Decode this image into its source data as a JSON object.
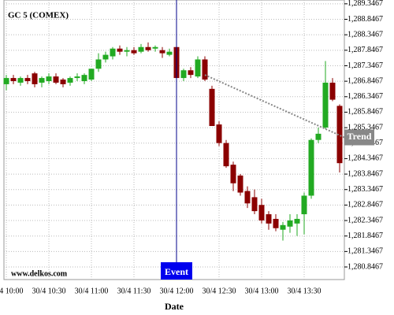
{
  "chart_data": {
    "type": "candlestick",
    "title": "GC 5 (COMEX)",
    "xlabel": "Date",
    "watermark": "www.delkos.com",
    "up_color": "#22aa22",
    "down_color": "#8b0000",
    "grid": true,
    "x": [
      "30/4 10:00",
      "30/4 10:05",
      "30/4 10:10",
      "30/4 10:15",
      "30/4 10:20",
      "30/4 10:25",
      "30/4 10:30",
      "30/4 10:35",
      "30/4 10:40",
      "30/4 10:45",
      "30/4 10:50",
      "30/4 10:55",
      "30/4 11:00",
      "30/4 11:05",
      "30/4 11:10",
      "30/4 11:15",
      "30/4 11:20",
      "30/4 11:25",
      "30/4 11:30",
      "30/4 11:35",
      "30/4 11:40",
      "30/4 11:45",
      "30/4 11:50",
      "30/4 11:55",
      "30/4 12:00",
      "30/4 12:05",
      "30/4 12:10",
      "30/4 12:15",
      "30/4 12:20",
      "30/4 12:25",
      "30/4 12:30",
      "30/4 12:35",
      "30/4 12:40",
      "30/4 12:45",
      "30/4 12:50",
      "30/4 12:55",
      "30/4 13:00",
      "30/4 13:05",
      "30/4 13:10",
      "30/4 13:15",
      "30/4 13:20",
      "30/4 13:25",
      "30/4 13:30",
      "30/4 13:35",
      "30/4 13:40",
      "30/4 13:45",
      "30/4 13:50",
      "30/4 13:55"
    ],
    "open": [
      1286.75,
      1286.95,
      1286.8,
      1286.95,
      1287.1,
      1286.8,
      1286.85,
      1287.0,
      1286.9,
      1286.8,
      1286.95,
      1286.85,
      1286.9,
      1287.25,
      1287.55,
      1287.65,
      1287.9,
      1287.8,
      1287.85,
      1287.8,
      1287.95,
      1287.9,
      1287.85,
      1287.7,
      1287.95,
      1286.95,
      1287.2,
      1287.0,
      1287.55,
      1286.6,
      1285.45,
      1284.85,
      1284.15,
      1283.8,
      1283.3,
      1283.1,
      1282.85,
      1282.55,
      1282.4,
      1282.05,
      1282.15,
      1282.25,
      1282.55,
      1283.15,
      1284.95,
      1285.35,
      1286.8,
      1286.05
    ],
    "high": [
      1287.05,
      1287.05,
      1287.0,
      1287.05,
      1287.15,
      1287.0,
      1287.1,
      1287.1,
      1286.95,
      1287.0,
      1287.1,
      1287.1,
      1287.25,
      1287.75,
      1287.8,
      1287.95,
      1288.0,
      1287.95,
      1287.95,
      1288.05,
      1288.1,
      1288.0,
      1287.95,
      1287.9,
      1288.0,
      1287.25,
      1287.3,
      1287.65,
      1287.65,
      1286.7,
      1285.55,
      1284.95,
      1284.25,
      1283.85,
      1283.45,
      1283.35,
      1283.05,
      1282.65,
      1282.55,
      1282.3,
      1282.55,
      1282.55,
      1283.25,
      1285.0,
      1285.35,
      1287.5,
      1286.95,
      1286.1
    ],
    "low": [
      1286.55,
      1286.75,
      1286.7,
      1286.75,
      1286.65,
      1286.65,
      1286.75,
      1286.75,
      1286.65,
      1286.7,
      1286.85,
      1286.75,
      1286.85,
      1287.15,
      1287.45,
      1287.55,
      1287.7,
      1287.65,
      1287.7,
      1287.75,
      1287.8,
      1287.8,
      1287.6,
      1287.65,
      1286.95,
      1286.85,
      1286.95,
      1286.95,
      1286.85,
      1285.4,
      1284.75,
      1284.05,
      1283.3,
      1283.15,
      1282.75,
      1282.55,
      1282.25,
      1282.05,
      1282.0,
      1281.7,
      1281.95,
      1281.85,
      1281.9,
      1283.05,
      1284.85,
      1285.3,
      1286.2,
      1283.9
    ],
    "close": [
      1286.95,
      1286.85,
      1286.95,
      1286.85,
      1286.75,
      1286.95,
      1287.0,
      1286.8,
      1286.75,
      1286.95,
      1287.0,
      1287.05,
      1287.25,
      1287.55,
      1287.7,
      1287.9,
      1287.8,
      1287.85,
      1287.75,
      1287.95,
      1287.85,
      1287.95,
      1287.75,
      1287.8,
      1286.95,
      1287.2,
      1287.05,
      1287.55,
      1286.9,
      1285.4,
      1284.85,
      1284.1,
      1283.55,
      1283.25,
      1282.9,
      1282.65,
      1282.35,
      1282.25,
      1282.1,
      1282.2,
      1282.35,
      1282.4,
      1283.15,
      1284.95,
      1285.15,
      1286.8,
      1286.25,
      1284.2
    ],
    "ylim": [
      1280.44,
      1289.47
    ],
    "yticks": [
      {
        "value": 1280.8467,
        "label": "1,280.8467"
      },
      {
        "value": 1281.3467,
        "label": "1,281.3467"
      },
      {
        "value": 1281.8467,
        "label": "1,281.8467"
      },
      {
        "value": 1282.3467,
        "label": "1,282.3467"
      },
      {
        "value": 1282.8467,
        "label": "1,282.8467"
      },
      {
        "value": 1283.3467,
        "label": "1,283.3467"
      },
      {
        "value": 1283.8467,
        "label": "1,283.8467"
      },
      {
        "value": 1284.3467,
        "label": "1,284.3467"
      },
      {
        "value": 1284.8467,
        "label": "1,284.8467"
      },
      {
        "value": 1285.3467,
        "label": "1,285.3467"
      },
      {
        "value": 1285.8467,
        "label": "1,285.8467"
      },
      {
        "value": 1286.3467,
        "label": "1,286.3467"
      },
      {
        "value": 1286.8467,
        "label": "1,286.8467"
      },
      {
        "value": 1287.3467,
        "label": "1,287.3467"
      },
      {
        "value": 1287.8467,
        "label": "1,287.8467"
      },
      {
        "value": 1288.3467,
        "label": "1,288.3467"
      },
      {
        "value": 1288.8467,
        "label": "1,288.8467"
      },
      {
        "value": 1289.3467,
        "label": "1,289.3467"
      }
    ],
    "xticks": [
      "30/4 10:00",
      "30/4 10:30",
      "30/4 11:00",
      "30/4 11:30",
      "30/4 12:00",
      "30/4 12:30",
      "30/4 13:00",
      "30/4 13:30"
    ],
    "event": {
      "label": "Event",
      "x": "30/4 12:00"
    },
    "trend": {
      "label": "Trend",
      "x": [
        "30/4 12:20",
        "30/4 13:55"
      ],
      "values": [
        1287.05,
        1285.1
      ]
    }
  }
}
